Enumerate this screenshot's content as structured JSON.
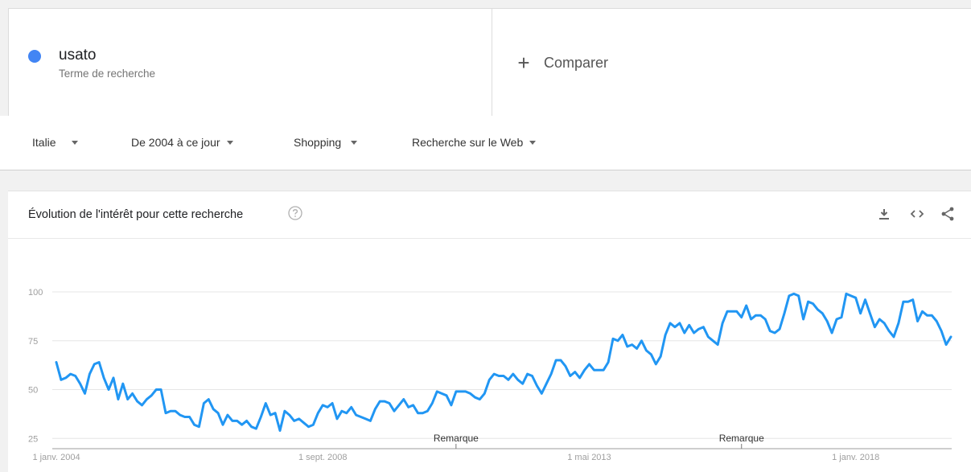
{
  "search_term": {
    "name": "usato",
    "type_label": "Terme de recherche",
    "color": "#4285f4"
  },
  "compare": {
    "plus": "+",
    "label": "Comparer"
  },
  "filters": {
    "region": "Italie",
    "period": "De 2004 à ce jour",
    "category": "Shopping",
    "search_type": "Recherche sur le Web"
  },
  "chart_card": {
    "title": "Évolution de l'intérêt pour cette recherche",
    "icons": [
      "help-icon",
      "download-icon",
      "embed-icon",
      "share-icon"
    ]
  },
  "chart_data": {
    "type": "line",
    "title": "Évolution de l'intérêt pour cette recherche",
    "series": [
      {
        "name": "usato",
        "color": "#2196f3",
        "values": [
          64,
          55,
          56,
          58,
          57,
          53,
          48,
          58,
          63,
          64,
          56,
          50,
          56,
          45,
          53,
          45,
          48,
          44,
          42,
          45,
          47,
          50,
          50,
          38,
          39,
          39,
          37,
          36,
          36,
          32,
          31,
          43,
          45,
          40,
          38,
          32,
          37,
          34,
          34,
          32,
          34,
          31,
          30,
          36,
          43,
          37,
          38,
          29,
          39,
          37,
          34,
          35,
          33,
          31,
          32,
          38,
          42,
          41,
          43,
          35,
          39,
          38,
          41,
          37,
          36,
          35,
          34,
          40,
          44,
          44,
          43,
          39,
          42,
          45,
          41,
          42,
          38,
          38,
          39,
          43,
          49,
          48,
          47,
          42,
          49,
          49,
          49,
          48,
          46,
          45,
          48,
          55,
          58,
          57,
          57,
          55,
          58,
          55,
          53,
          58,
          57,
          52,
          48,
          53,
          58,
          65,
          65,
          62,
          57,
          59,
          56,
          60,
          63,
          60,
          60,
          60,
          64,
          76,
          75,
          78,
          72,
          73,
          71,
          75,
          70,
          68,
          63,
          67,
          78,
          84,
          82,
          84,
          79,
          83,
          79,
          81,
          82,
          77,
          75,
          73,
          84,
          90,
          90,
          90,
          87,
          93,
          86,
          88,
          88,
          86,
          80,
          79,
          81,
          89,
          98,
          99,
          98,
          86,
          95,
          94,
          91,
          89,
          85,
          79,
          86,
          87,
          99,
          98,
          97,
          89,
          96,
          89,
          82,
          86,
          84,
          80,
          77,
          84,
          95,
          95,
          96,
          85,
          90,
          88,
          88,
          85,
          80,
          73,
          77
        ],
        "start": "2004-01",
        "frequency": "monthly"
      }
    ],
    "y_ticks": [
      "25",
      "50",
      "75",
      "100"
    ],
    "ylim": [
      0,
      100
    ],
    "x_ticks": [
      "1 janv. 2004",
      "1 sept. 2008",
      "1 mai 2013",
      "1 janv. 2018"
    ],
    "annotations": [
      "Remarque",
      "Remarque"
    ],
    "grid": true,
    "legend": "none"
  }
}
